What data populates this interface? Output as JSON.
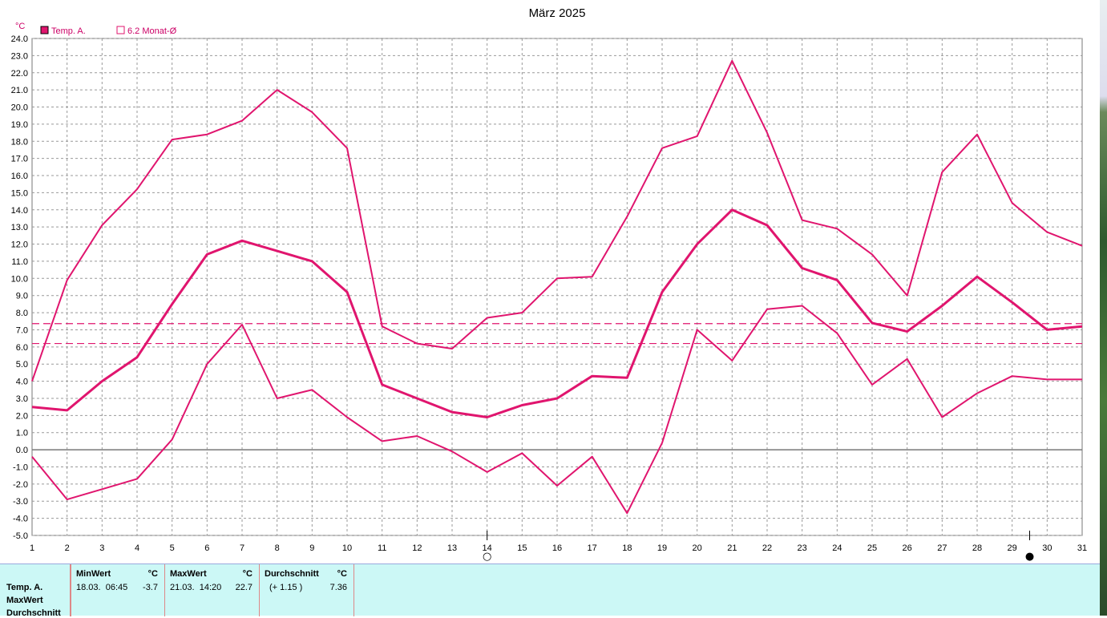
{
  "chart_data": {
    "type": "line",
    "title": "März 2025",
    "ylabel": "°C",
    "ylim": [
      -5.0,
      24.0
    ],
    "ystep": 1.0,
    "x": [
      1,
      2,
      3,
      4,
      5,
      6,
      7,
      8,
      9,
      10,
      11,
      12,
      13,
      14,
      15,
      16,
      17,
      18,
      19,
      20,
      21,
      22,
      23,
      24,
      25,
      26,
      27,
      28,
      29,
      30,
      31
    ],
    "legend": [
      {
        "label": "Temp. A.",
        "filled": true
      },
      {
        "label": "6.2 Monat-Ø",
        "filled": false
      }
    ],
    "series": [
      {
        "role": "max",
        "values": [
          4.0,
          9.9,
          13.1,
          15.2,
          18.1,
          18.4,
          19.2,
          21.0,
          19.7,
          17.6,
          7.2,
          6.2,
          5.9,
          7.7,
          8.0,
          10.0,
          10.1,
          13.6,
          17.6,
          18.3,
          22.7,
          18.5,
          13.4,
          12.9,
          11.4,
          9.0,
          16.2,
          18.4,
          14.4,
          12.7,
          11.9
        ]
      },
      {
        "role": "avg",
        "values": [
          2.5,
          2.3,
          4.0,
          5.4,
          8.5,
          11.4,
          12.2,
          11.6,
          11.0,
          9.2,
          3.8,
          3.0,
          2.2,
          1.9,
          2.6,
          3.0,
          4.3,
          4.2,
          9.2,
          12.0,
          14.0,
          13.1,
          10.6,
          9.9,
          7.4,
          6.9,
          8.4,
          10.1,
          8.6,
          7.0,
          7.2
        ]
      },
      {
        "role": "min",
        "values": [
          -0.4,
          -2.9,
          -2.3,
          -1.7,
          0.6,
          5.0,
          7.3,
          3.0,
          3.5,
          1.9,
          0.5,
          0.8,
          -0.1,
          -1.3,
          -0.2,
          -2.1,
          -0.4,
          -3.7,
          0.4,
          7.0,
          5.2,
          8.2,
          8.4,
          6.8,
          3.8,
          5.3,
          1.9,
          3.3,
          4.3,
          4.1,
          4.1
        ]
      }
    ],
    "reference_lines": [
      7.36,
      6.2
    ],
    "moon_markers": [
      {
        "day": 14,
        "symbol": "○"
      },
      {
        "day": 29.5,
        "symbol": "●"
      }
    ],
    "grid": true,
    "legend_position": "top-left"
  },
  "colors": {
    "series": "#e0156e",
    "reference": "#e0156e",
    "grid": "#999999",
    "panel": "#ccf8f6"
  },
  "summary": {
    "row_labels": [
      "Temp. A.",
      "MaxWert",
      "Durchschnitt"
    ],
    "min": {
      "header": "MinWert",
      "unit": "°C",
      "date": "18.03.",
      "time": "06:45",
      "value": "-3.7"
    },
    "max": {
      "header": "MaxWert",
      "unit": "°C",
      "date": "21.03.",
      "time": "14:20",
      "value": "22.7"
    },
    "avg": {
      "header": "Durchschnitt",
      "unit": "°C",
      "delta": "(+ 1.15 )",
      "value": "7.36"
    }
  }
}
